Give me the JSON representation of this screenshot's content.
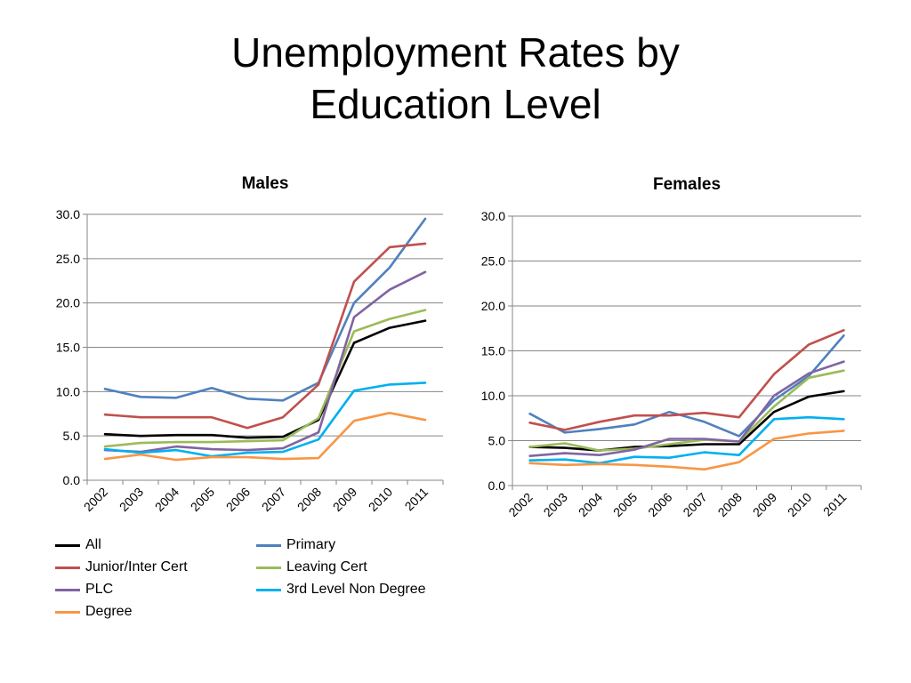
{
  "slide": {
    "title_line1": "Unemployment Rates by",
    "title_line2": "Education Level"
  },
  "series_colors": {
    "All": "#000000",
    "Primary": "#4F81BD",
    "Junior/Inter Cert": "#C0504D",
    "Leaving Cert": "#9BBB59",
    "PLC": "#8064A2",
    "3rd Level Non Degree": "#00B0F0",
    "Degree": "#F79646"
  },
  "legend": [
    "All",
    "Primary",
    "Junior/Inter Cert",
    "Leaving Cert",
    "PLC",
    "3rd Level Non Degree",
    "Degree"
  ],
  "chart_data": [
    {
      "type": "line",
      "title": "Males",
      "categories": [
        "2002",
        "2003",
        "2004",
        "2005",
        "2006",
        "2007",
        "2008",
        "2009",
        "2010",
        "2011"
      ],
      "ylim": [
        0,
        30
      ],
      "yticks": [
        "0.0",
        "5.0",
        "10.0",
        "15.0",
        "20.0",
        "25.0",
        "30.0"
      ],
      "grid": true,
      "legend_position": "bottom",
      "series": [
        {
          "name": "All",
          "values": [
            5.2,
            5.0,
            5.1,
            5.1,
            4.8,
            4.9,
            6.8,
            15.5,
            17.2,
            18.0
          ]
        },
        {
          "name": "Primary",
          "values": [
            10.3,
            9.4,
            9.3,
            10.4,
            9.2,
            9.0,
            11.0,
            20.0,
            24.0,
            29.5
          ]
        },
        {
          "name": "Junior/Inter Cert",
          "values": [
            7.4,
            7.1,
            7.1,
            7.1,
            5.9,
            7.1,
            10.8,
            22.4,
            26.3,
            26.7
          ]
        },
        {
          "name": "Leaving Cert",
          "values": [
            3.8,
            4.2,
            4.3,
            4.3,
            4.4,
            4.5,
            7.0,
            16.8,
            18.2,
            19.2
          ]
        },
        {
          "name": "PLC",
          "values": [
            3.4,
            3.2,
            3.8,
            3.5,
            3.4,
            3.6,
            5.4,
            18.4,
            21.5,
            23.5
          ]
        },
        {
          "name": "3rd Level Non Degree",
          "values": [
            3.5,
            3.1,
            3.4,
            2.7,
            3.1,
            3.2,
            4.6,
            10.1,
            10.8,
            11.0
          ]
        },
        {
          "name": "Degree",
          "values": [
            2.4,
            2.9,
            2.3,
            2.6,
            2.6,
            2.4,
            2.5,
            6.7,
            7.6,
            6.8
          ]
        }
      ]
    },
    {
      "type": "line",
      "title": "Females",
      "categories": [
        "2002",
        "2003",
        "2004",
        "2005",
        "2006",
        "2007",
        "2008",
        "2009",
        "2010",
        "2011"
      ],
      "ylim": [
        0,
        30
      ],
      "yticks": [
        "0.0",
        "5.0",
        "10.0",
        "15.0",
        "20.0",
        "25.0",
        "30.0"
      ],
      "grid": true,
      "legend_position": "none",
      "series": [
        {
          "name": "All",
          "values": [
            4.3,
            4.2,
            3.9,
            4.3,
            4.4,
            4.6,
            4.6,
            8.2,
            9.9,
            10.5
          ]
        },
        {
          "name": "Primary",
          "values": [
            8.0,
            5.9,
            6.3,
            6.8,
            8.2,
            7.1,
            5.5,
            9.5,
            12.2,
            16.7
          ]
        },
        {
          "name": "Junior/Inter Cert",
          "values": [
            7.0,
            6.2,
            7.1,
            7.8,
            7.8,
            8.1,
            7.6,
            12.4,
            15.7,
            17.3
          ]
        },
        {
          "name": "Leaving Cert",
          "values": [
            4.3,
            4.7,
            3.9,
            4.1,
            4.6,
            5.1,
            4.9,
            8.8,
            12.0,
            12.8
          ]
        },
        {
          "name": "PLC",
          "values": [
            3.3,
            3.6,
            3.4,
            4.0,
            5.2,
            5.2,
            4.9,
            10.0,
            12.5,
            13.8
          ]
        },
        {
          "name": "3rd Level Non Degree",
          "values": [
            2.8,
            2.9,
            2.5,
            3.2,
            3.1,
            3.7,
            3.4,
            7.4,
            7.6,
            7.4
          ]
        },
        {
          "name": "Degree",
          "values": [
            2.5,
            2.3,
            2.4,
            2.3,
            2.1,
            1.8,
            2.6,
            5.2,
            5.8,
            6.1
          ]
        }
      ]
    }
  ]
}
